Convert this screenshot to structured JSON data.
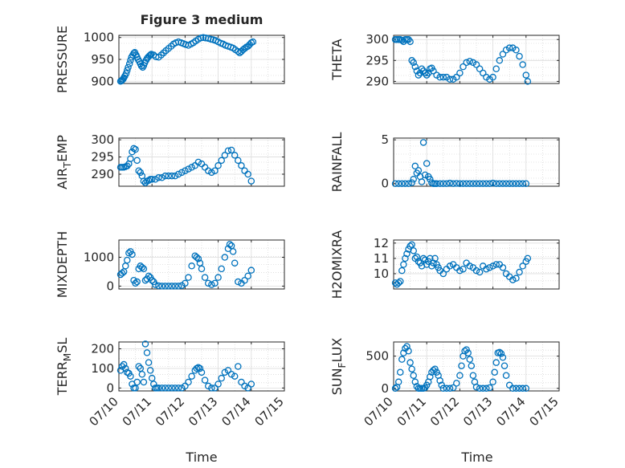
{
  "figure": {
    "title": "Figure 3 medium",
    "xlabel": "Time",
    "marker_color": "#0072BD",
    "grid_color": "#cccccc",
    "background": "#ffffff"
  },
  "chart_data": [
    {
      "type": "scatter",
      "ylabel": "PRESSURE",
      "ylim": [
        895,
        1005
      ],
      "yticks": [
        "900",
        "950",
        "1000"
      ],
      "yticks_values": [
        900,
        950,
        1000
      ],
      "xlim": [
        0,
        5
      ],
      "xticks": [],
      "grid": true,
      "x": [
        0.05,
        0.08,
        0.1,
        0.13,
        0.15,
        0.18,
        0.22,
        0.25,
        0.28,
        0.32,
        0.35,
        0.38,
        0.42,
        0.45,
        0.48,
        0.52,
        0.55,
        0.58,
        0.62,
        0.65,
        0.68,
        0.72,
        0.75,
        0.78,
        0.82,
        0.85,
        0.88,
        0.92,
        0.95,
        0.98,
        1.05,
        1.12,
        1.2,
        1.28,
        1.35,
        1.42,
        1.5,
        1.58,
        1.65,
        1.72,
        1.8,
        1.88,
        1.95,
        2.02,
        2.1,
        2.18,
        2.25,
        2.32,
        2.4,
        2.48,
        2.55,
        2.62,
        2.7,
        2.78,
        2.85,
        2.92,
        3.0,
        3.08,
        3.15,
        3.22,
        3.3,
        3.38,
        3.45,
        3.52,
        3.6,
        3.65,
        3.7,
        3.75,
        3.8,
        3.85,
        3.9,
        3.95,
        4.0,
        4.05
      ],
      "y": [
        900,
        901,
        903,
        905,
        908,
        912,
        918,
        925,
        932,
        940,
        948,
        955,
        960,
        964,
        966,
        960,
        955,
        950,
        945,
        940,
        935,
        932,
        936,
        942,
        948,
        952,
        955,
        958,
        960,
        962,
        960,
        956,
        955,
        960,
        965,
        970,
        975,
        980,
        985,
        988,
        990,
        988,
        986,
        984,
        982,
        985,
        988,
        992,
        996,
        999,
        1000,
        999,
        998,
        996,
        995,
        993,
        990,
        987,
        985,
        982,
        980,
        978,
        976,
        972,
        968,
        965,
        968,
        972,
        975,
        978,
        980,
        984,
        988,
        990
      ]
    },
    {
      "type": "scatter",
      "ylabel": "THETA",
      "ylim": [
        289.5,
        301
      ],
      "yticks": [
        "290",
        "295",
        "300"
      ],
      "yticks_values": [
        290,
        295,
        300
      ],
      "xlim": [
        0,
        5
      ],
      "xticks": [],
      "grid": true,
      "x": [
        0.05,
        0.1,
        0.15,
        0.2,
        0.25,
        0.3,
        0.35,
        0.4,
        0.45,
        0.5,
        0.55,
        0.6,
        0.65,
        0.7,
        0.75,
        0.8,
        0.85,
        0.9,
        0.95,
        1.0,
        1.05,
        1.1,
        1.15,
        1.2,
        1.3,
        1.4,
        1.5,
        1.6,
        1.7,
        1.8,
        1.9,
        2.0,
        2.1,
        2.2,
        2.3,
        2.4,
        2.5,
        2.6,
        2.7,
        2.8,
        2.9,
        3.0,
        3.1,
        3.2,
        3.3,
        3.4,
        3.5,
        3.6,
        3.7,
        3.8,
        3.9,
        4.0,
        4.05
      ],
      "y": [
        300,
        300,
        300,
        300,
        299.8,
        299.5,
        300,
        300,
        300,
        299.5,
        295,
        294.5,
        293.5,
        292.5,
        291.5,
        292,
        293,
        292.5,
        292,
        291.5,
        292,
        293,
        293.2,
        292.5,
        291.5,
        291,
        291,
        291,
        290.5,
        290.5,
        291,
        292,
        293.5,
        294.5,
        294.8,
        294.5,
        294,
        293,
        292,
        291,
        290.5,
        291,
        293,
        295,
        296.5,
        297.5,
        298,
        298,
        297.5,
        296,
        294,
        291.5,
        290
      ]
    },
    {
      "type": "scatter",
      "ylabel": "AIR_TEMP",
      "ylim": [
        286.5,
        300.5
      ],
      "yticks": [
        "290",
        "295",
        "300"
      ],
      "yticks_values": [
        290,
        295,
        300
      ],
      "xlim": [
        0,
        5
      ],
      "xticks": [],
      "grid": true,
      "x": [
        0.05,
        0.1,
        0.15,
        0.2,
        0.25,
        0.3,
        0.35,
        0.4,
        0.45,
        0.5,
        0.55,
        0.6,
        0.65,
        0.7,
        0.75,
        0.8,
        0.85,
        0.9,
        0.95,
        1.0,
        1.1,
        1.2,
        1.3,
        1.4,
        1.5,
        1.6,
        1.7,
        1.8,
        1.9,
        2.0,
        2.1,
        2.2,
        2.3,
        2.4,
        2.5,
        2.6,
        2.7,
        2.8,
        2.9,
        3.0,
        3.1,
        3.2,
        3.3,
        3.4,
        3.5,
        3.6,
        3.7,
        3.8,
        3.9,
        4.0
      ],
      "y": [
        292,
        292,
        292,
        292.2,
        292.4,
        293,
        294.5,
        296.5,
        297.5,
        297.2,
        294,
        291,
        290.5,
        289.5,
        288,
        287.5,
        288,
        288.2,
        288.5,
        288.5,
        288.5,
        289,
        289,
        289.5,
        289.5,
        289.5,
        289.5,
        290,
        290.5,
        291,
        291.5,
        292,
        292.5,
        293.5,
        293,
        292,
        291,
        290.5,
        291,
        292.5,
        294,
        295.5,
        296.8,
        297,
        295.5,
        294,
        292.5,
        291,
        290,
        288
      ]
    },
    {
      "type": "scatter",
      "ylabel": "RAINFALL",
      "ylim": [
        -0.3,
        5.2
      ],
      "yticks": [
        "0",
        "5"
      ],
      "yticks_values": [
        0,
        5
      ],
      "xlim": [
        0,
        5
      ],
      "xticks": [],
      "grid": true,
      "x": [
        0.05,
        0.15,
        0.25,
        0.35,
        0.45,
        0.55,
        0.6,
        0.65,
        0.7,
        0.75,
        0.8,
        0.85,
        0.9,
        0.95,
        1.0,
        1.05,
        1.1,
        1.15,
        1.2,
        1.25,
        1.3,
        1.4,
        1.5,
        1.6,
        1.7,
        1.8,
        1.9,
        2.0,
        2.1,
        2.2,
        2.3,
        2.4,
        2.5,
        2.6,
        2.7,
        2.8,
        2.9,
        3.0,
        3.1,
        3.2,
        3.3,
        3.4,
        3.5,
        3.6,
        3.7,
        3.8,
        3.9,
        4.0
      ],
      "y": [
        0,
        0,
        0,
        0,
        0,
        0.1,
        0.5,
        2.0,
        1.2,
        1.5,
        0.8,
        0.2,
        4.7,
        1.0,
        2.3,
        0.8,
        0.5,
        0.1,
        0,
        0,
        0,
        0,
        0,
        0,
        0.05,
        0,
        0.02,
        0,
        0,
        0,
        0,
        0,
        0,
        0,
        0,
        0,
        0,
        0.05,
        0,
        0,
        0,
        0,
        0,
        0,
        0,
        0,
        0,
        0
      ]
    },
    {
      "type": "scatter",
      "ylabel": "MIXDEPTH",
      "ylim": [
        -100,
        1600
      ],
      "yticks": [
        "0",
        "1000"
      ],
      "yticks_values": [
        0,
        1000
      ],
      "xlim": [
        0,
        5
      ],
      "xticks": [],
      "grid": true,
      "x": [
        0.05,
        0.1,
        0.15,
        0.2,
        0.25,
        0.3,
        0.35,
        0.4,
        0.45,
        0.5,
        0.55,
        0.6,
        0.65,
        0.7,
        0.75,
        0.8,
        0.85,
        0.9,
        0.95,
        1.0,
        1.05,
        1.1,
        1.2,
        1.3,
        1.4,
        1.5,
        1.6,
        1.7,
        1.8,
        1.9,
        2.0,
        2.1,
        2.2,
        2.3,
        2.35,
        2.4,
        2.45,
        2.5,
        2.6,
        2.7,
        2.8,
        2.9,
        3.0,
        3.1,
        3.2,
        3.3,
        3.35,
        3.4,
        3.45,
        3.5,
        3.6,
        3.7,
        3.8,
        3.9,
        4.0
      ],
      "y": [
        400,
        450,
        500,
        700,
        900,
        1150,
        1200,
        1100,
        200,
        100,
        150,
        600,
        700,
        650,
        600,
        200,
        250,
        350,
        300,
        200,
        150,
        50,
        10,
        0,
        0,
        0,
        0,
        0,
        0,
        20,
        100,
        300,
        700,
        1050,
        1000,
        950,
        800,
        600,
        300,
        100,
        50,
        100,
        300,
        600,
        1000,
        1300,
        1450,
        1400,
        1200,
        800,
        150,
        100,
        200,
        350,
        550
      ]
    },
    {
      "type": "scatter",
      "ylabel": "H2OMIXRA",
      "ylim": [
        9,
        12.2
      ],
      "yticks": [
        "10",
        "11",
        "12"
      ],
      "yticks_values": [
        10,
        11,
        12
      ],
      "xlim": [
        0,
        5
      ],
      "xticks": [],
      "grid": true,
      "x": [
        0.05,
        0.1,
        0.15,
        0.2,
        0.25,
        0.3,
        0.35,
        0.4,
        0.45,
        0.5,
        0.55,
        0.6,
        0.65,
        0.7,
        0.75,
        0.8,
        0.85,
        0.9,
        0.95,
        1.0,
        1.05,
        1.1,
        1.15,
        1.2,
        1.25,
        1.3,
        1.35,
        1.4,
        1.5,
        1.6,
        1.7,
        1.8,
        1.9,
        2.0,
        2.1,
        2.2,
        2.3,
        2.4,
        2.5,
        2.6,
        2.7,
        2.8,
        2.9,
        3.0,
        3.1,
        3.2,
        3.3,
        3.4,
        3.5,
        3.6,
        3.7,
        3.8,
        3.9,
        4.0,
        4.05
      ],
      "y": [
        9.4,
        9.3,
        9.4,
        9.5,
        10.2,
        10.6,
        11.0,
        11.3,
        11.6,
        11.8,
        11.9,
        11.5,
        11.0,
        11.1,
        10.8,
        10.7,
        10.5,
        11.0,
        10.9,
        10.6,
        10.8,
        11.0,
        10.5,
        10.7,
        11.0,
        10.6,
        10.4,
        10.2,
        10.0,
        10.3,
        10.5,
        10.6,
        10.4,
        10.2,
        10.3,
        10.7,
        10.5,
        10.4,
        10.2,
        10.1,
        10.5,
        10.3,
        10.4,
        10.5,
        10.6,
        10.6,
        10.4,
        10.0,
        9.8,
        9.6,
        9.7,
        10.1,
        10.5,
        10.8,
        11.0
      ]
    },
    {
      "type": "scatter",
      "ylabel": "TERR_MSL",
      "ylim": [
        -15,
        235
      ],
      "yticks": [
        "0",
        "100",
        "200"
      ],
      "yticks_values": [
        0,
        100,
        200
      ],
      "xlim": [
        0,
        5
      ],
      "xticks": [
        "07/10",
        "07/11",
        "07/12",
        "07/13",
        "07/14",
        "07/15"
      ],
      "xticks_values": [
        0,
        1,
        2,
        3,
        4,
        5
      ],
      "grid": true,
      "x": [
        0.05,
        0.1,
        0.15,
        0.2,
        0.25,
        0.3,
        0.35,
        0.4,
        0.45,
        0.5,
        0.55,
        0.6,
        0.65,
        0.7,
        0.75,
        0.8,
        0.85,
        0.9,
        0.95,
        1.0,
        1.05,
        1.1,
        1.15,
        1.2,
        1.3,
        1.4,
        1.5,
        1.6,
        1.7,
        1.8,
        1.9,
        2.0,
        2.1,
        2.2,
        2.3,
        2.35,
        2.4,
        2.45,
        2.5,
        2.6,
        2.7,
        2.8,
        2.9,
        3.0,
        3.1,
        3.2,
        3.3,
        3.4,
        3.5,
        3.6,
        3.7,
        3.8,
        3.9,
        4.0
      ],
      "y": [
        90,
        110,
        120,
        100,
        80,
        75,
        60,
        20,
        0,
        0,
        30,
        110,
        100,
        70,
        30,
        225,
        180,
        130,
        90,
        50,
        20,
        0,
        0,
        0,
        0,
        0,
        0,
        0,
        0,
        0,
        0,
        10,
        30,
        60,
        90,
        100,
        105,
        100,
        80,
        40,
        10,
        0,
        0,
        20,
        50,
        80,
        90,
        70,
        60,
        110,
        30,
        10,
        0,
        20
      ]
    },
    {
      "type": "scatter",
      "ylabel": "SUN_FLUX",
      "ylim": [
        -40,
        720
      ],
      "yticks": [
        "0",
        "500"
      ],
      "yticks_values": [
        0,
        500
      ],
      "xlim": [
        0,
        5
      ],
      "xticks": [
        "07/10",
        "07/11",
        "07/12",
        "07/13",
        "07/14",
        "07/15"
      ],
      "xticks_values": [
        0,
        1,
        2,
        3,
        4,
        5
      ],
      "grid": true,
      "x": [
        0.05,
        0.1,
        0.15,
        0.2,
        0.25,
        0.3,
        0.35,
        0.4,
        0.45,
        0.5,
        0.55,
        0.6,
        0.65,
        0.7,
        0.75,
        0.8,
        0.85,
        0.9,
        0.95,
        1.0,
        1.05,
        1.1,
        1.15,
        1.2,
        1.25,
        1.3,
        1.35,
        1.4,
        1.45,
        1.5,
        1.6,
        1.7,
        1.8,
        1.9,
        2.0,
        2.05,
        2.1,
        2.15,
        2.2,
        2.25,
        2.3,
        2.35,
        2.4,
        2.45,
        2.5,
        2.6,
        2.7,
        2.8,
        2.9,
        3.0,
        3.05,
        3.1,
        3.15,
        3.2,
        3.25,
        3.3,
        3.35,
        3.4,
        3.5,
        3.6,
        3.7,
        3.8,
        3.9,
        4.0
      ],
      "y": [
        0,
        20,
        100,
        250,
        450,
        550,
        620,
        650,
        580,
        400,
        300,
        200,
        100,
        30,
        0,
        0,
        0,
        0,
        10,
        50,
        100,
        180,
        250,
        280,
        300,
        250,
        200,
        120,
        50,
        0,
        0,
        0,
        10,
        80,
        200,
        350,
        500,
        580,
        600,
        550,
        450,
        350,
        200,
        100,
        20,
        0,
        0,
        0,
        10,
        100,
        250,
        400,
        550,
        560,
        540,
        480,
        350,
        200,
        50,
        0,
        0,
        0,
        0,
        0
      ]
    }
  ]
}
